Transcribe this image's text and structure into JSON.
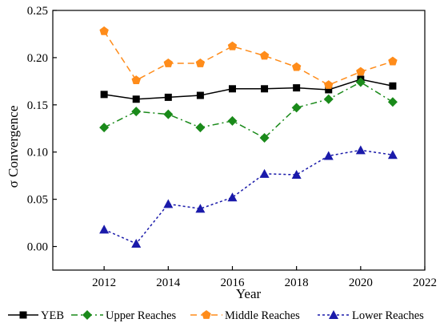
{
  "chart_data": {
    "type": "line",
    "xlabel": "Year",
    "ylabel": "σ Convergence",
    "xlim": [
      2010.4,
      2022
    ],
    "ylim": [
      -0.025,
      0.25
    ],
    "xticks": [
      2012,
      2014,
      2016,
      2018,
      2020,
      2022
    ],
    "yticks": [
      0.0,
      0.05,
      0.1,
      0.15,
      0.2,
      0.25
    ],
    "ytick_labels": [
      "0.00",
      "0.05",
      "0.10",
      "0.15",
      "0.20",
      "0.25"
    ],
    "legend_position": "bottom",
    "x": [
      2012,
      2013,
      2014,
      2015,
      2016,
      2017,
      2018,
      2019,
      2020,
      2021
    ],
    "series": [
      {
        "name": "YEB",
        "color": "#000000",
        "marker": "square",
        "dash": "solid",
        "values": [
          0.161,
          0.156,
          0.158,
          0.16,
          0.167,
          0.167,
          0.168,
          0.166,
          0.177,
          0.17
        ]
      },
      {
        "name": "Upper Reaches",
        "color": "#1a8a1a",
        "marker": "diamond",
        "dash": "dash-dot",
        "values": [
          0.126,
          0.143,
          0.14,
          0.126,
          0.133,
          0.115,
          0.147,
          0.156,
          0.174,
          0.153
        ]
      },
      {
        "name": "Middle Reaches",
        "color": "#ff8c1a",
        "marker": "pentagon",
        "dash": "dash",
        "values": [
          0.228,
          0.176,
          0.194,
          0.194,
          0.212,
          0.202,
          0.19,
          0.171,
          0.185,
          0.196
        ]
      },
      {
        "name": "Lower Reaches",
        "color": "#1a1aaa",
        "marker": "triangle",
        "dash": "dot",
        "values": [
          0.018,
          0.003,
          0.045,
          0.04,
          0.052,
          0.077,
          0.076,
          0.096,
          0.102,
          0.097
        ]
      }
    ]
  }
}
